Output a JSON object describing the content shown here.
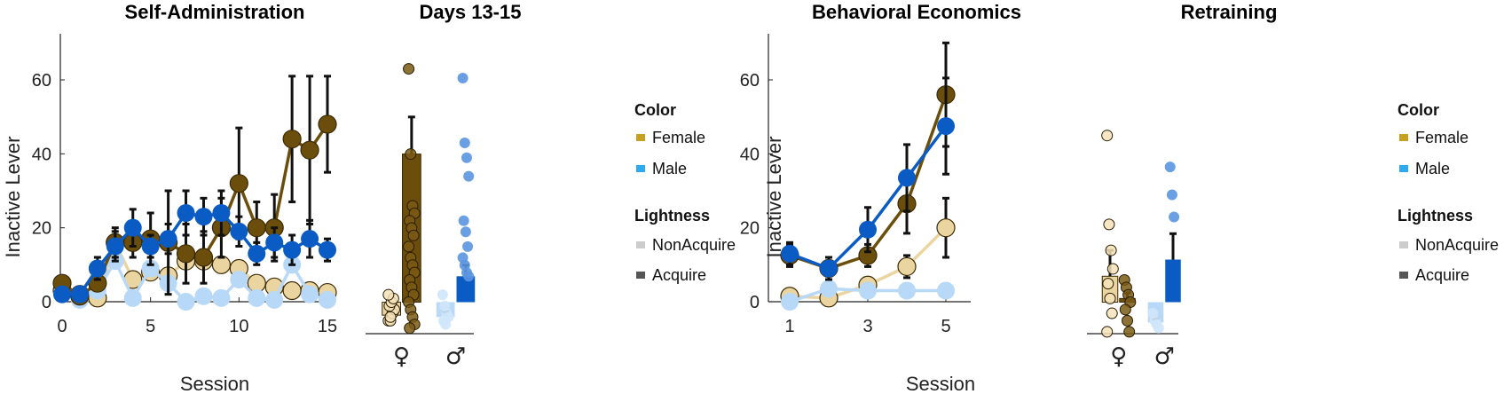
{
  "colors": {
    "female_nonacquire": "#ead4a0",
    "female_acquire": "#6b4e0c",
    "male_nonacquire": "#b8d8f8",
    "male_acquire": "#0a5bc4",
    "female_key": "#c8a020",
    "male_key": "#2eaaf2",
    "nonacquire_key": "#cccccc",
    "acquire_key": "#555555"
  },
  "chart_data": [
    {
      "id": "self_admin",
      "type": "line",
      "title": "Self-Administration",
      "xlabel": "Session",
      "ylabel": "Inactive Lever",
      "xlim": [
        0,
        15
      ],
      "ylim": [
        0,
        72
      ],
      "xticks": [
        "0",
        "5",
        "10",
        "15"
      ],
      "yticks": [
        "0",
        "20",
        "40",
        "60"
      ],
      "x": [
        0,
        1,
        2,
        3,
        4,
        5,
        6,
        7,
        8,
        9,
        10,
        11,
        12,
        13,
        14,
        15
      ],
      "series": [
        {
          "key": "female_nonacquire",
          "values": [
            3,
            2,
            1,
            16,
            6,
            8,
            7,
            11,
            11,
            10,
            9,
            5,
            4,
            3,
            3,
            2.5
          ],
          "err": [
            0,
            0,
            0,
            0,
            0,
            0,
            0,
            0,
            0,
            0,
            0,
            0,
            0,
            0,
            0,
            0
          ]
        },
        {
          "key": "male_nonacquire",
          "values": [
            2,
            0.5,
            3,
            11,
            1,
            9,
            5,
            0,
            1.5,
            1,
            6,
            1,
            0.5,
            10,
            2,
            0.5
          ],
          "err": [
            0,
            0,
            0,
            0,
            0,
            0,
            0,
            0,
            0,
            0,
            0,
            0,
            0,
            0,
            0,
            0
          ]
        },
        {
          "key": "female_acquire",
          "values": [
            5,
            1.5,
            5,
            16,
            16,
            17,
            16,
            13,
            12,
            20,
            32,
            20,
            20,
            44,
            41,
            48
          ],
          "err": [
            1,
            1,
            2,
            4,
            4,
            7,
            14,
            8,
            7,
            8,
            15,
            7,
            9,
            17,
            20,
            13
          ]
        },
        {
          "key": "male_acquire",
          "values": [
            2,
            2,
            9,
            15,
            20,
            15,
            17,
            24,
            23,
            24,
            19,
            13,
            16,
            14,
            17,
            14
          ],
          "err": [
            1,
            1,
            3,
            4,
            5,
            3,
            4,
            6,
            5,
            6,
            4,
            3,
            4,
            4,
            5,
            3
          ]
        }
      ]
    },
    {
      "id": "days_13_15",
      "type": "bar",
      "title": "Days 13-15",
      "categories": [
        "♀",
        "♂"
      ],
      "ylim": [
        -8.5,
        72
      ],
      "bars": [
        {
          "key": "female_nonacquire",
          "value": -3.5,
          "err": 0,
          "points": [
            -5,
            -5,
            -3,
            -2,
            -1,
            0,
            1,
            2,
            -4
          ]
        },
        {
          "key": "female_acquire",
          "value": 40,
          "err": 10,
          "points": [
            63,
            40,
            26,
            24,
            22,
            20,
            18,
            15,
            12,
            10,
            8,
            6,
            4,
            2,
            0,
            -2,
            -4,
            -6,
            -7
          ]
        },
        {
          "key": "male_nonacquire",
          "value": -4,
          "err": 1.5,
          "points": [
            2,
            -1,
            -3,
            -4,
            -5,
            -6
          ]
        },
        {
          "key": "male_acquire",
          "value": 7,
          "err": 3,
          "points": [
            60.5,
            43,
            39,
            34,
            22,
            19,
            15,
            12,
            10,
            8,
            7
          ]
        }
      ]
    },
    {
      "id": "behav_econ",
      "type": "line",
      "title": "Behavioral Economics",
      "xlabel": "Session",
      "ylabel": "Inactive Lever",
      "xlim": [
        0.5,
        5.5
      ],
      "ylim": [
        0,
        72
      ],
      "xticks": [
        "1",
        "3",
        "5"
      ],
      "yticks": [
        "0",
        "20",
        "40",
        "60"
      ],
      "x": [
        1,
        2,
        3,
        4,
        5
      ],
      "series": [
        {
          "key": "female_nonacquire",
          "values": [
            1.5,
            1,
            4.5,
            9.5,
            20
          ],
          "err": [
            0,
            0,
            0,
            3,
            8
          ]
        },
        {
          "key": "male_nonacquire",
          "values": [
            0,
            3.5,
            3,
            3,
            3
          ],
          "err": [
            0,
            0,
            0,
            0,
            0
          ]
        },
        {
          "key": "female_acquire",
          "values": [
            12.5,
            9,
            12.5,
            26.5,
            56
          ],
          "err": [
            3,
            3,
            3,
            8,
            14
          ]
        },
        {
          "key": "male_acquire",
          "values": [
            13,
            9,
            19.5,
            33.5,
            47.5
          ],
          "err": [
            3,
            2,
            6,
            9,
            13
          ]
        }
      ]
    },
    {
      "id": "retraining",
      "type": "bar",
      "title": "Retraining",
      "categories": [
        "♀",
        "♂"
      ],
      "ylim": [
        -8.5,
        72
      ],
      "bars": [
        {
          "key": "female_nonacquire",
          "value": 7,
          "err": 7,
          "points": [
            45,
            21,
            14,
            9,
            5,
            1,
            -3,
            -8
          ]
        },
        {
          "key": "female_acquire",
          "value": 1,
          "err": 1.5,
          "points": [
            6,
            4,
            2,
            0,
            -2,
            -5,
            -8
          ]
        },
        {
          "key": "male_nonacquire",
          "value": -5.5,
          "err": 1,
          "points": [
            -3,
            -5,
            -6,
            -7
          ]
        },
        {
          "key": "male_acquire",
          "value": 11.5,
          "err": 7,
          "points": [
            36.5,
            29,
            23
          ]
        }
      ]
    }
  ],
  "legends": [
    {
      "id": "legend_left",
      "color_title": "Color",
      "color_items": [
        {
          "label": "Female",
          "key": "female_key"
        },
        {
          "label": "Male",
          "key": "male_key"
        }
      ],
      "light_title": "Lightness",
      "light_items": [
        {
          "label": "NonAcquire",
          "key": "nonacquire_key"
        },
        {
          "label": "Acquire",
          "key": "acquire_key"
        }
      ]
    },
    {
      "id": "legend_right",
      "color_title": "Color",
      "color_items": [
        {
          "label": "Female",
          "key": "female_key"
        },
        {
          "label": "Male",
          "key": "male_key"
        }
      ],
      "light_title": "Lightness",
      "light_items": [
        {
          "label": "NonAcquire",
          "key": "nonacquire_key"
        },
        {
          "label": "Acquire",
          "key": "acquire_key"
        }
      ]
    }
  ]
}
